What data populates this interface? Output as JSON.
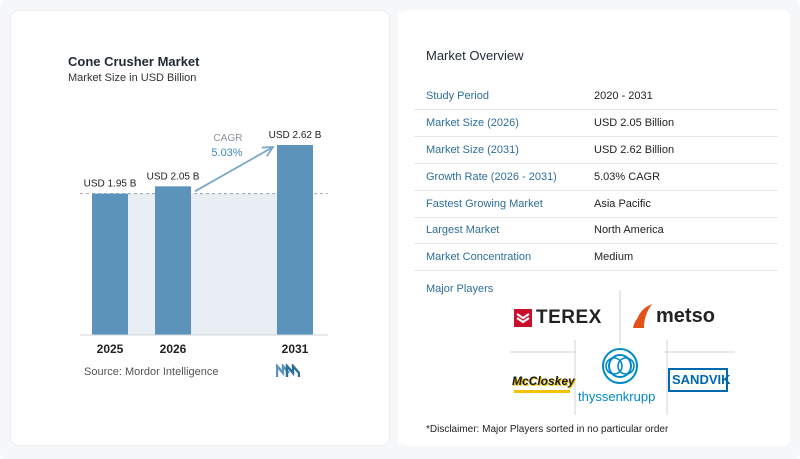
{
  "chart_data": {
    "type": "bar",
    "title": "Cone Crusher Market",
    "subtitle": "Market Size in USD Billion",
    "categories": [
      "2025",
      "2026",
      "2031"
    ],
    "values": [
      1.95,
      2.05,
      2.62
    ],
    "data_labels": [
      "USD 1.95 B",
      "USD 2.05 B",
      "USD 2.62 B"
    ],
    "cagr_label": "CAGR",
    "cagr_value": "5.03%",
    "bar_color": "#5b93ba",
    "highlight_color": "#e8eef4",
    "arrow_color": "#7aa7c7",
    "ylim": [
      0,
      2.62
    ],
    "grid": false,
    "legend": "none"
  },
  "source": {
    "text": "Source:  Mordor Intelligence",
    "logo_icon": "mordor-intelligence-logo-icon"
  },
  "overview": {
    "title": "Market Overview",
    "rows": [
      {
        "label": "Study Period",
        "value": "2020 - 2031"
      },
      {
        "label": "Market Size (2026)",
        "value": "USD 2.05 Billion"
      },
      {
        "label": "Market Size (2031)",
        "value": "USD 2.62 Billion"
      },
      {
        "label": "Growth Rate (2026 - 2031)",
        "value": "5.03% CAGR"
      },
      {
        "label": "Fastest Growing Market",
        "value": "Asia Pacific"
      },
      {
        "label": "Largest Market",
        "value": "North America"
      },
      {
        "label": "Market Concentration",
        "value": "Medium"
      }
    ]
  },
  "players": {
    "title": "Major Players",
    "logos": [
      {
        "name": "TEREX",
        "color": "#222222",
        "accent": "#c8102e"
      },
      {
        "name": "metso",
        "color": "#222222",
        "accent": "#e2531a"
      },
      {
        "name": "McCloskey",
        "color": "#1a1a1a",
        "accent": "#f2c200"
      },
      {
        "name": "thyssenkrupp",
        "color": "#0089c9"
      },
      {
        "name": "SANDVIK",
        "color": "#0067b1"
      }
    ],
    "disclaimer": "*Disclaimer: Major Players sorted in no particular order"
  }
}
